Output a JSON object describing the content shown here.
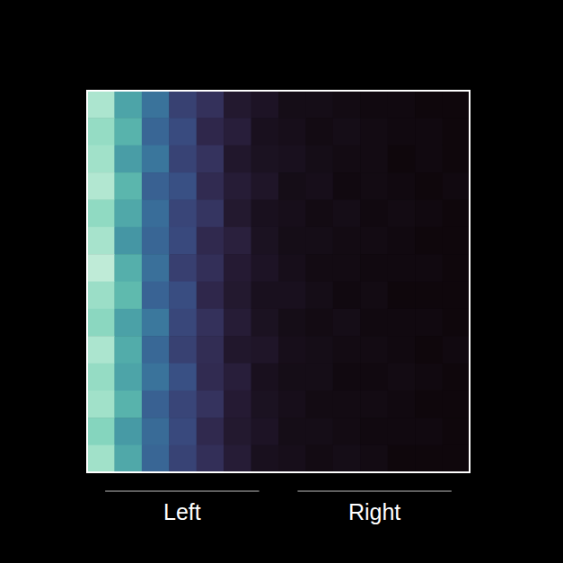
{
  "chart_data": {
    "type": "heatmap",
    "categories": [
      "Left",
      "Right"
    ],
    "tick_labels": "x",
    "zlim": [
      0,
      1
    ],
    "cells": [
      [
        0.92,
        0.7,
        0.55,
        0.33,
        0.25,
        0.12,
        0.09,
        0.05,
        0.05,
        0.04,
        0.03,
        0.03,
        0.02,
        0.02
      ],
      [
        0.88,
        0.74,
        0.5,
        0.38,
        0.2,
        0.15,
        0.07,
        0.06,
        0.04,
        0.05,
        0.04,
        0.03,
        0.03,
        0.02
      ],
      [
        0.9,
        0.68,
        0.56,
        0.34,
        0.26,
        0.11,
        0.08,
        0.07,
        0.05,
        0.04,
        0.04,
        0.02,
        0.03,
        0.02
      ],
      [
        0.93,
        0.75,
        0.48,
        0.4,
        0.22,
        0.14,
        0.1,
        0.05,
        0.06,
        0.03,
        0.04,
        0.03,
        0.02,
        0.03
      ],
      [
        0.87,
        0.71,
        0.53,
        0.35,
        0.27,
        0.12,
        0.07,
        0.06,
        0.04,
        0.05,
        0.03,
        0.04,
        0.03,
        0.02
      ],
      [
        0.91,
        0.66,
        0.5,
        0.37,
        0.21,
        0.16,
        0.08,
        0.05,
        0.05,
        0.04,
        0.04,
        0.03,
        0.02,
        0.02
      ],
      [
        0.95,
        0.73,
        0.54,
        0.32,
        0.24,
        0.13,
        0.09,
        0.06,
        0.04,
        0.04,
        0.03,
        0.03,
        0.03,
        0.02
      ],
      [
        0.89,
        0.76,
        0.49,
        0.39,
        0.2,
        0.12,
        0.07,
        0.07,
        0.05,
        0.03,
        0.04,
        0.02,
        0.02,
        0.02
      ],
      [
        0.86,
        0.69,
        0.57,
        0.36,
        0.25,
        0.14,
        0.08,
        0.05,
        0.04,
        0.05,
        0.03,
        0.03,
        0.03,
        0.02
      ],
      [
        0.92,
        0.72,
        0.51,
        0.33,
        0.23,
        0.11,
        0.1,
        0.06,
        0.05,
        0.04,
        0.04,
        0.03,
        0.02,
        0.03
      ],
      [
        0.88,
        0.7,
        0.55,
        0.4,
        0.22,
        0.15,
        0.07,
        0.05,
        0.05,
        0.03,
        0.03,
        0.04,
        0.03,
        0.02
      ],
      [
        0.9,
        0.74,
        0.48,
        0.35,
        0.26,
        0.13,
        0.08,
        0.06,
        0.04,
        0.04,
        0.04,
        0.03,
        0.02,
        0.02
      ],
      [
        0.85,
        0.67,
        0.52,
        0.37,
        0.21,
        0.12,
        0.09,
        0.05,
        0.05,
        0.04,
        0.03,
        0.03,
        0.03,
        0.02
      ],
      [
        0.9,
        0.71,
        0.5,
        0.34,
        0.24,
        0.14,
        0.07,
        0.06,
        0.04,
        0.05,
        0.04,
        0.02,
        0.02,
        0.02
      ]
    ]
  }
}
